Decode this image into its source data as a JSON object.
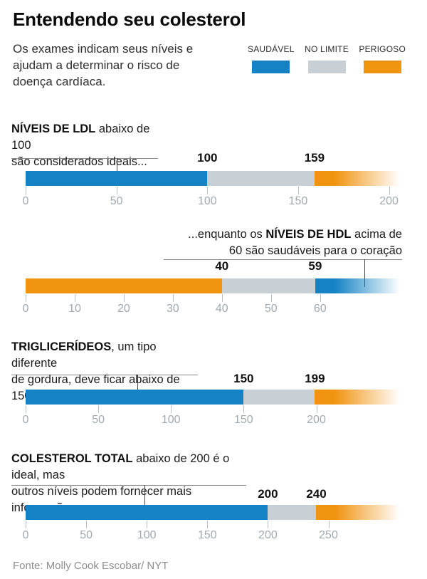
{
  "title": "Entendendo seu colesterol",
  "subtitle_lines": [
    "Os exames indicam seus níveis e",
    "ajudam a determinar o risco de",
    "doença cardíaca."
  ],
  "legend": {
    "items": [
      {
        "label": "SAUDÁVEL",
        "color": "#1482c4",
        "status": "healthy"
      },
      {
        "label": "NO LIMITE",
        "color": "#c9d0d5",
        "status": "limit"
      },
      {
        "label": "PERIGOSO",
        "color": "#f0930f",
        "status": "danger"
      }
    ]
  },
  "colors": {
    "healthy": "#1482c4",
    "limit": "#c9d0d5",
    "danger": "#f0930f"
  },
  "source": "Fonte: Molly Cook Escobar/ NYT",
  "chart_data": [
    {
      "id": "ldl",
      "type": "bar",
      "annotation": {
        "align": "left",
        "pointer_value": 50,
        "lines": [
          [
            {
              "t": "NÍVEIS DE LDL",
              "b": true
            },
            {
              "t": " abaixo de 100",
              "b": false
            }
          ],
          [
            {
              "t": "são considerados ideais...",
              "b": false
            }
          ]
        ]
      },
      "axis": {
        "min": 0,
        "max": 208,
        "ticks": [
          0,
          50,
          100,
          150,
          200
        ]
      },
      "segments": [
        {
          "from": 0,
          "to": 100,
          "status": "healthy",
          "fade": false
        },
        {
          "from": 100,
          "to": 159,
          "status": "limit",
          "fade": false
        },
        {
          "from": 159,
          "to": 208,
          "status": "danger",
          "fade": true
        }
      ],
      "threshold_labels": [
        {
          "value": 100,
          "text": "100"
        },
        {
          "value": 159,
          "text": "159"
        }
      ]
    },
    {
      "id": "hdl",
      "type": "bar",
      "annotation": {
        "align": "right",
        "pointer_value": 69,
        "lines": [
          [
            {
              "t": "...enquanto os ",
              "b": false
            },
            {
              "t": "NÍVEIS DE HDL",
              "b": true
            },
            {
              "t": " acima de",
              "b": false
            }
          ],
          [
            {
              "t": "60 são saudáveis para o coração",
              "b": false
            }
          ]
        ]
      },
      "axis": {
        "min": 0,
        "max": 77,
        "ticks": [
          0,
          10,
          20,
          30,
          40,
          50,
          60
        ]
      },
      "segments": [
        {
          "from": 0,
          "to": 40,
          "status": "danger",
          "fade": false
        },
        {
          "from": 40,
          "to": 59,
          "status": "limit",
          "fade": false
        },
        {
          "from": 59,
          "to": 77,
          "status": "healthy",
          "fade": true
        }
      ],
      "threshold_labels": [
        {
          "value": 40,
          "text": "40"
        },
        {
          "value": 59,
          "text": "59"
        }
      ]
    },
    {
      "id": "triglicerideos",
      "type": "bar",
      "annotation": {
        "align": "left",
        "pointer_value": 77,
        "lines": [
          [
            {
              "t": "TRIGLICERÍDEOS",
              "b": true
            },
            {
              "t": ", um tipo diferente",
              "b": false
            }
          ],
          [
            {
              "t": "de gordura, deve ficar abaixo de 150",
              "b": false
            }
          ]
        ]
      },
      "axis": {
        "min": 0,
        "max": 260,
        "ticks": [
          0,
          50,
          100,
          150,
          200
        ]
      },
      "segments": [
        {
          "from": 0,
          "to": 150,
          "status": "healthy",
          "fade": false
        },
        {
          "from": 150,
          "to": 199,
          "status": "limit",
          "fade": false
        },
        {
          "from": 199,
          "to": 260,
          "status": "danger",
          "fade": true
        }
      ],
      "threshold_labels": [
        {
          "value": 150,
          "text": "150"
        },
        {
          "value": 199,
          "text": "199"
        }
      ]
    },
    {
      "id": "colesterol-total",
      "type": "bar",
      "annotation": {
        "align": "left",
        "pointer_value": 98,
        "lines": [
          [
            {
              "t": "COLESTEROL TOTAL",
              "b": true
            },
            {
              "t": " abaixo de 200 é o ideal, mas",
              "b": false
            }
          ],
          [
            {
              "t": "outros níveis podem fornecer mais informações",
              "b": false
            }
          ]
        ]
      },
      "axis": {
        "min": 0,
        "max": 312,
        "ticks": [
          0,
          50,
          100,
          150,
          200,
          250
        ]
      },
      "segments": [
        {
          "from": 0,
          "to": 200,
          "status": "healthy",
          "fade": false
        },
        {
          "from": 200,
          "to": 240,
          "status": "limit",
          "fade": false
        },
        {
          "from": 240,
          "to": 312,
          "status": "danger",
          "fade": true
        }
      ],
      "threshold_labels": [
        {
          "value": 200,
          "text": "200"
        },
        {
          "value": 240,
          "text": "240"
        }
      ]
    }
  ]
}
